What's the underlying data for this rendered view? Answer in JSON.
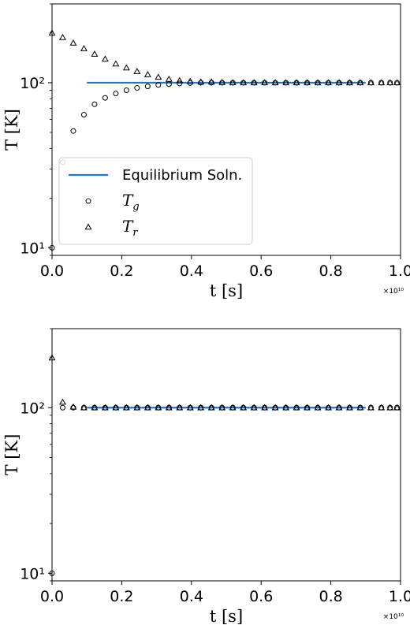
{
  "chart_data": [
    {
      "type": "scatter",
      "xlabel": "t [s]",
      "ylabel": "T [K]",
      "x_multiplier": "×10¹⁰",
      "xlim": [
        0,
        1.0
      ],
      "ylim": [
        9,
        300
      ],
      "yscale": "log",
      "x_ticks": [
        0.0,
        0.2,
        0.4,
        0.6,
        0.8,
        1.0
      ],
      "x_tick_labels": [
        "0.0",
        "0.2",
        "0.4",
        "0.6",
        "0.8",
        "1.0"
      ],
      "y_ticks": [
        10,
        100
      ],
      "y_tick_labels": [
        "10¹",
        "10²"
      ],
      "legend": {
        "placement": "lower-left",
        "entries": [
          {
            "marker": "line",
            "label": "Equilibrium Soln."
          },
          {
            "marker": "circle",
            "label": "T",
            "subscript": "g"
          },
          {
            "marker": "triangle",
            "label": "T",
            "subscript": "r"
          }
        ]
      },
      "series": [
        {
          "name": "Equilibrium Soln.",
          "kind": "line",
          "color": "#1f77d4",
          "x": [
            0.1,
            0.9
          ],
          "y": [
            100,
            100
          ]
        },
        {
          "name": "T_g",
          "kind": "circle",
          "color": "#000000",
          "x": [
            0.0,
            0.0305,
            0.061,
            0.0915,
            0.122,
            0.1525,
            0.183,
            0.2135,
            0.244,
            0.2745,
            0.305,
            0.3355,
            0.366,
            0.3965,
            0.427,
            0.4575,
            0.488,
            0.5185,
            0.549,
            0.5795,
            0.61,
            0.6405,
            0.671,
            0.7015,
            0.732,
            0.7625,
            0.793,
            0.8235,
            0.854,
            0.8845,
            0.915,
            0.945,
            0.97,
            0.99
          ],
          "y": [
            10,
            33,
            51,
            64,
            74,
            81,
            86,
            90,
            93,
            95,
            97,
            98,
            99,
            99.5,
            100,
            100,
            100,
            100,
            100,
            100,
            100,
            100,
            100,
            100,
            100,
            100,
            100,
            100,
            100,
            100,
            100,
            100,
            100,
            100
          ]
        },
        {
          "name": "T_r",
          "kind": "triangle",
          "color": "#000000",
          "x": [
            0.0,
            0.0305,
            0.061,
            0.0915,
            0.122,
            0.1525,
            0.183,
            0.2135,
            0.244,
            0.2745,
            0.305,
            0.3355,
            0.366,
            0.3965,
            0.427,
            0.4575,
            0.488,
            0.5185,
            0.549,
            0.5795,
            0.61,
            0.6405,
            0.671,
            0.7015,
            0.732,
            0.7625,
            0.793,
            0.8235,
            0.854,
            0.8845,
            0.915,
            0.945,
            0.97,
            0.99
          ],
          "y": [
            200,
            188,
            174,
            161,
            149,
            139,
            130,
            123,
            117,
            112,
            108,
            105,
            103,
            102,
            101,
            101,
            100.5,
            100,
            100,
            100,
            100,
            100,
            100,
            100,
            100,
            100,
            100,
            100,
            100,
            100,
            100,
            100,
            100,
            100
          ]
        }
      ]
    },
    {
      "type": "scatter",
      "xlabel": "t [s]",
      "ylabel": "T [K]",
      "x_multiplier": "×10¹⁰",
      "xlim": [
        0,
        1.0
      ],
      "ylim": [
        9,
        300
      ],
      "yscale": "log",
      "x_ticks": [
        0.0,
        0.2,
        0.4,
        0.6,
        0.8,
        1.0
      ],
      "x_tick_labels": [
        "0.0",
        "0.2",
        "0.4",
        "0.6",
        "0.8",
        "1.0"
      ],
      "y_ticks": [
        10,
        100
      ],
      "y_tick_labels": [
        "10¹",
        "10²"
      ],
      "series": [
        {
          "name": "Equilibrium Soln.",
          "kind": "line",
          "color": "#1f77d4",
          "x": [
            0.1,
            0.9
          ],
          "y": [
            100,
            100
          ]
        },
        {
          "name": "T_g",
          "kind": "circle",
          "color": "#000000",
          "x": [
            0.0,
            0.0305,
            0.061,
            0.0915,
            0.122,
            0.1525,
            0.183,
            0.2135,
            0.244,
            0.2745,
            0.305,
            0.3355,
            0.366,
            0.3965,
            0.427,
            0.4575,
            0.488,
            0.5185,
            0.549,
            0.5795,
            0.61,
            0.6405,
            0.671,
            0.7015,
            0.732,
            0.7625,
            0.793,
            0.8235,
            0.854,
            0.8845,
            0.915,
            0.945,
            0.97,
            0.99
          ],
          "y": [
            10,
            100,
            100,
            100,
            100,
            100,
            100,
            100,
            100,
            100,
            100,
            100,
            100,
            100,
            100,
            100,
            100,
            100,
            100,
            100,
            100,
            100,
            100,
            100,
            100,
            100,
            100,
            100,
            100,
            100,
            100,
            100,
            100,
            100
          ]
        },
        {
          "name": "T_r",
          "kind": "triangle",
          "color": "#000000",
          "x": [
            0.0,
            0.0305,
            0.061,
            0.0915,
            0.122,
            0.1525,
            0.183,
            0.2135,
            0.244,
            0.2745,
            0.305,
            0.3355,
            0.366,
            0.3965,
            0.427,
            0.4575,
            0.488,
            0.5185,
            0.549,
            0.5795,
            0.61,
            0.6405,
            0.671,
            0.7015,
            0.732,
            0.7625,
            0.793,
            0.8235,
            0.854,
            0.8845,
            0.915,
            0.945,
            0.97,
            0.99
          ],
          "y": [
            200,
            108,
            101,
            100,
            100,
            100,
            100,
            100,
            100,
            100,
            100,
            100,
            100,
            100,
            100,
            100,
            100,
            100,
            100,
            100,
            100,
            100,
            100,
            100,
            100,
            100,
            100,
            100,
            100,
            100,
            100,
            100,
            100,
            100
          ]
        }
      ]
    }
  ]
}
